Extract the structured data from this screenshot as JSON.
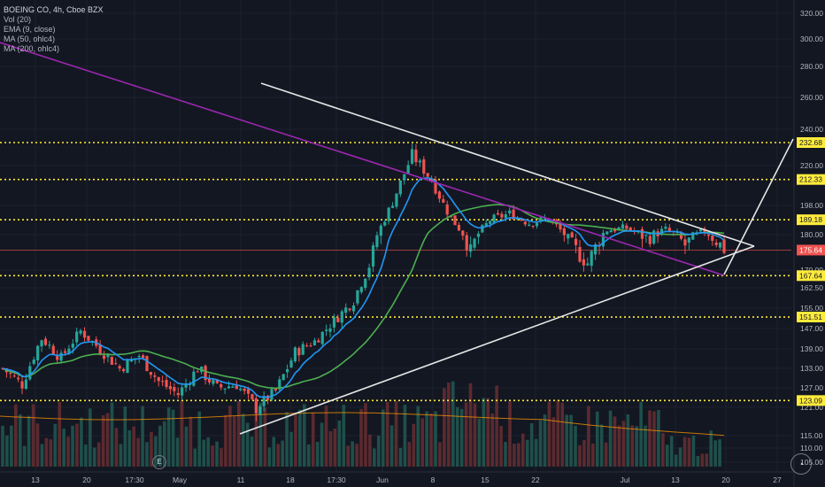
{
  "legend": {
    "title": "BOEING CO, 4h, Cboe BZX",
    "lines": [
      "Vol (20)",
      "EMA (9, close)",
      "MA (50, ohlc4)",
      "MA (200, ohlc4)"
    ]
  },
  "event_marker": "E",
  "logo_icon": "chart-logo-icon",
  "colors": {
    "background": "#131722",
    "grid": "#1e222d",
    "up": "#26a69a",
    "down": "#ef5350",
    "ema": "#2196f3",
    "ma50": "#4caf50",
    "ma200": "#ff9800",
    "downtrend": "#9c27b0",
    "level": "#ffeb3b",
    "trendline": "#e6e6e6"
  },
  "chart_data": {
    "type": "candlestick",
    "symbol": "BOEING CO",
    "interval": "4h",
    "exchange": "Cboe BZX",
    "y_ticks": [
      105,
      110,
      115,
      121,
      127,
      133,
      139,
      147,
      155,
      162.5,
      170,
      180,
      198,
      220,
      240,
      260,
      280,
      300,
      320
    ],
    "x_ticks": [
      "13",
      "20",
      "17:30",
      "May",
      "11",
      "18",
      "17:30",
      "Jun",
      "8",
      "15",
      "22",
      "Jul",
      "13",
      "20",
      "27"
    ],
    "levels": [
      232.68,
      212.33,
      189.18,
      167.64,
      151.51,
      123.09
    ],
    "last_price": 175.64,
    "price_points": [
      [
        0,
        133
      ],
      [
        5,
        128
      ],
      [
        10,
        143
      ],
      [
        15,
        136
      ],
      [
        20,
        146
      ],
      [
        25,
        139
      ],
      [
        30,
        133
      ],
      [
        35,
        137
      ],
      [
        40,
        129
      ],
      [
        45,
        125
      ],
      [
        50,
        133
      ],
      [
        55,
        127
      ],
      [
        60,
        128
      ],
      [
        65,
        121
      ],
      [
        70,
        126
      ],
      [
        75,
        138
      ],
      [
        80,
        142
      ],
      [
        85,
        150
      ],
      [
        90,
        158
      ],
      [
        95,
        175
      ],
      [
        100,
        200
      ],
      [
        105,
        226
      ],
      [
        110,
        212
      ],
      [
        115,
        190
      ],
      [
        120,
        175
      ],
      [
        125,
        189
      ],
      [
        130,
        193
      ],
      [
        135,
        187
      ],
      [
        140,
        190
      ],
      [
        145,
        178
      ],
      [
        150,
        172
      ],
      [
        155,
        183
      ],
      [
        160,
        184
      ],
      [
        165,
        179
      ],
      [
        170,
        183
      ],
      [
        175,
        177
      ],
      [
        180,
        182
      ],
      [
        185,
        176
      ]
    ],
    "volume_bars": 165
  }
}
